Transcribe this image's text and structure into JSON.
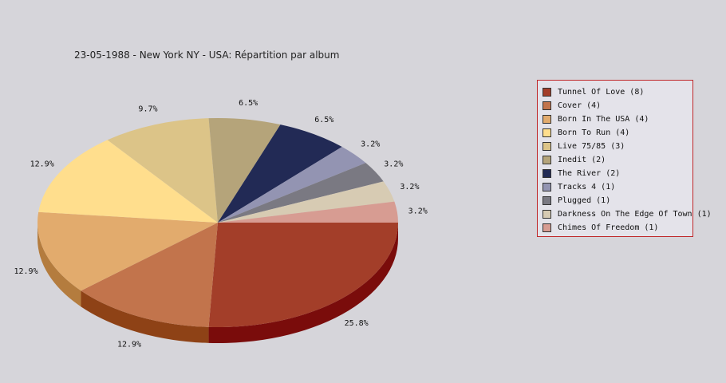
{
  "chart_data": {
    "type": "pie",
    "title": "23-05-1988 - New York NY - USA:  Répartition par album",
    "legend_position": "right",
    "slices": [
      {
        "label": "Tunnel Of Love (8)",
        "value": 8,
        "pct_label": "25.8%",
        "color": "#a33e29",
        "side": "#7a0c0b"
      },
      {
        "label": "Cover (4)",
        "value": 4,
        "pct_label": "12.9%",
        "color": "#c2744c",
        "side": "#8e4216"
      },
      {
        "label": "Born In The USA (4)",
        "value": 4,
        "pct_label": "12.9%",
        "color": "#e2ab6d",
        "side": "#b47c3e"
      },
      {
        "label": "Born To Run (4)",
        "value": 4,
        "pct_label": "12.9%",
        "color": "#ffde8d",
        "side": "#c8a95e"
      },
      {
        "label": "Live 75/85 (3)",
        "value": 3,
        "pct_label": "9.7%",
        "color": "#dcc488",
        "side": "#a99558"
      },
      {
        "label": "Inedit (2)",
        "value": 2,
        "pct_label": "6.5%",
        "color": "#b5a47a",
        "side": "#85764f"
      },
      {
        "label": "The River (2)",
        "value": 2,
        "pct_label": "6.5%",
        "color": "#222a55",
        "side": "#141a3a"
      },
      {
        "label": "Tracks 4 (1)",
        "value": 1,
        "pct_label": "3.2%",
        "color": "#9394b2",
        "side": "#656682"
      },
      {
        "label": "Plugged (1)",
        "value": 1,
        "pct_label": "3.2%",
        "color": "#7a7982",
        "side": "#4f4e57"
      },
      {
        "label": "Darkness On The Edge Of Town (1)",
        "value": 1,
        "pct_label": "3.2%",
        "color": "#d7cbb3",
        "side": "#a79b83"
      },
      {
        "label": "Chimes Of Freedom (1)",
        "value": 1,
        "pct_label": "3.2%",
        "color": "#d79c92",
        "side": "#a86a60"
      }
    ]
  }
}
